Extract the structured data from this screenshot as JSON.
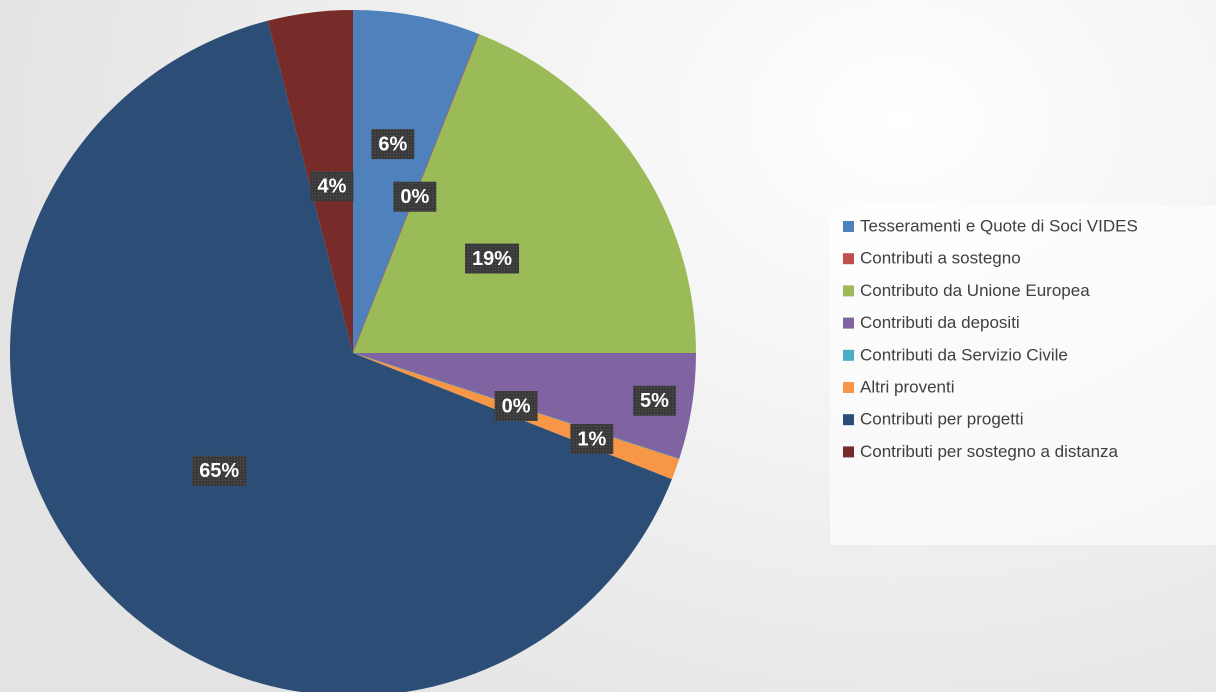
{
  "chart_data": {
    "type": "pie",
    "categories": [
      "Tesseramenti e Quote di Soci VIDES",
      "Contributi a sostegno",
      "Contributo da Unione Europea",
      "Contributi da depositi",
      "Contributi da Servizio Civile",
      "Altri proventi",
      "Contributi per progetti",
      "Contributi per sostegno a distanza"
    ],
    "values": [
      6,
      0,
      19,
      5,
      0,
      1,
      65,
      4
    ],
    "value_labels": [
      "6%",
      "0%",
      "19%",
      "5%",
      "0%",
      "1%",
      "65%",
      "4%"
    ],
    "colors": [
      "#4f81bd",
      "#c0504d",
      "#9bbb59",
      "#8064a2",
      "#4bacc6",
      "#f79646",
      "#2c4d75",
      "#772c2a"
    ],
    "legend": "right"
  }
}
